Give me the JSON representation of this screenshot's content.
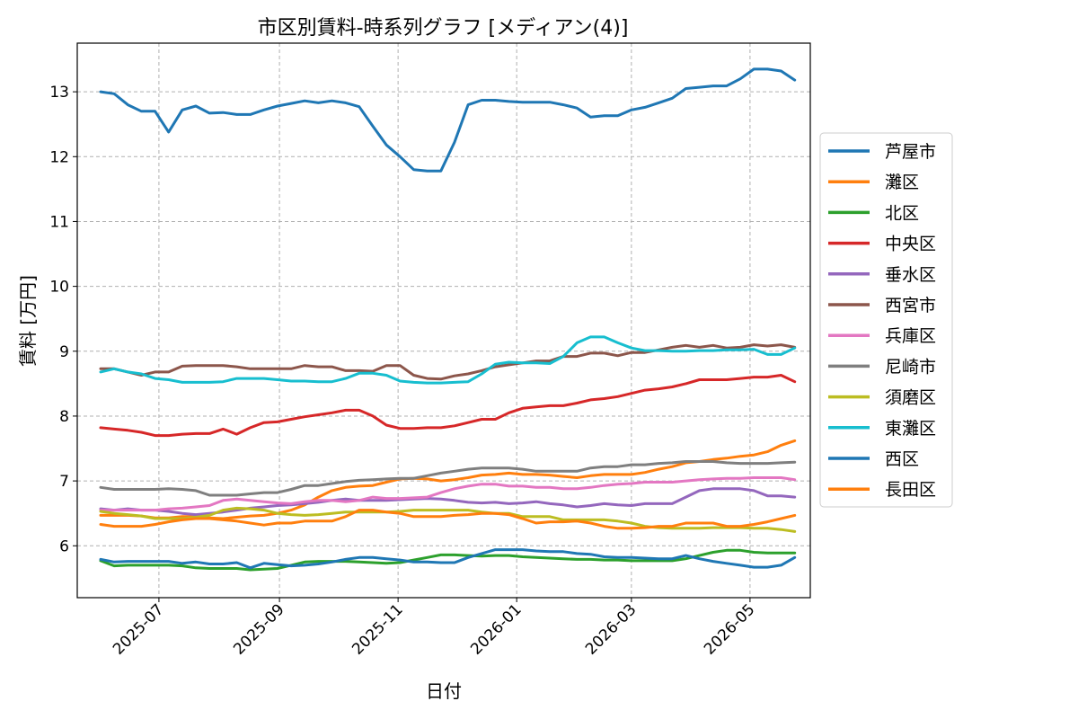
{
  "chart_data": {
    "type": "line",
    "title": "市区別賃料-時系列グラフ [メディアン(4)]",
    "xlabel": "日付",
    "ylabel": "賃料 [万円]",
    "xlim": [
      "2025-05-20",
      "2026-06-01"
    ],
    "ylim": [
      5.2,
      13.75
    ],
    "xticks": [
      "2025-07",
      "2025-09",
      "2025-11",
      "2026-01",
      "2026-03",
      "2026-05"
    ],
    "yticks": [
      6,
      7,
      8,
      9,
      10,
      11,
      12,
      13
    ],
    "grid": true,
    "legend_position": "right-outside",
    "x": [
      "2025-06-01",
      "2025-06-08",
      "2025-06-15",
      "2025-06-22",
      "2025-06-29",
      "2025-07-06",
      "2025-07-13",
      "2025-07-20",
      "2025-07-27",
      "2025-08-03",
      "2025-08-10",
      "2025-08-17",
      "2025-08-24",
      "2025-08-31",
      "2025-09-07",
      "2025-09-14",
      "2025-09-21",
      "2025-09-28",
      "2025-10-05",
      "2025-10-12",
      "2025-10-19",
      "2025-10-26",
      "2025-11-02",
      "2025-11-09",
      "2025-11-16",
      "2025-11-23",
      "2025-11-30",
      "2025-12-07",
      "2025-12-14",
      "2025-12-21",
      "2025-12-28",
      "2026-01-04",
      "2026-01-11",
      "2026-01-18",
      "2026-01-25",
      "2026-02-01",
      "2026-02-08",
      "2026-02-15",
      "2026-02-22",
      "2026-03-01",
      "2026-03-08",
      "2026-03-15",
      "2026-03-22",
      "2026-03-29",
      "2026-04-05",
      "2026-04-12",
      "2026-04-19",
      "2026-04-26",
      "2026-05-03",
      "2026-05-10",
      "2026-05-17",
      "2026-05-24"
    ],
    "series": [
      {
        "name": "芦屋市",
        "color": "#1f77b4",
        "values": [
          13.0,
          12.97,
          12.8,
          12.7,
          12.7,
          12.38,
          12.72,
          12.78,
          12.67,
          12.68,
          12.65,
          12.65,
          12.72,
          12.78,
          12.82,
          12.86,
          12.83,
          12.86,
          12.83,
          12.77,
          12.47,
          12.18,
          12.0,
          11.8,
          11.78,
          11.78,
          12.22,
          12.8,
          12.87,
          12.87,
          12.85,
          12.84,
          12.84,
          12.84,
          12.8,
          12.75,
          12.61,
          12.63,
          12.63,
          12.72,
          12.76,
          12.83,
          12.9,
          13.05,
          13.07,
          13.09,
          13.09,
          13.2,
          13.35,
          13.35,
          13.32,
          13.18
        ]
      },
      {
        "name": "灘区",
        "color": "#ff7f0e",
        "values": [
          6.47,
          6.47,
          6.47,
          6.46,
          6.43,
          6.43,
          6.45,
          6.45,
          6.43,
          6.42,
          6.44,
          6.46,
          6.47,
          6.5,
          6.55,
          6.63,
          6.75,
          6.85,
          6.9,
          6.92,
          6.93,
          6.98,
          7.03,
          7.04,
          7.03,
          7.0,
          7.02,
          7.05,
          7.09,
          7.1,
          7.12,
          7.1,
          7.1,
          7.09,
          7.07,
          7.05,
          7.08,
          7.1,
          7.1,
          7.1,
          7.13,
          7.18,
          7.22,
          7.28,
          7.3,
          7.33,
          7.35,
          7.38,
          7.4,
          7.45,
          7.55,
          7.62
        ]
      },
      {
        "name": "北区",
        "color": "#2ca02c",
        "values": [
          5.77,
          5.69,
          5.7,
          5.7,
          5.7,
          5.7,
          5.69,
          5.66,
          5.65,
          5.65,
          5.65,
          5.63,
          5.64,
          5.65,
          5.7,
          5.75,
          5.76,
          5.76,
          5.76,
          5.75,
          5.74,
          5.73,
          5.74,
          5.78,
          5.82,
          5.86,
          5.86,
          5.85,
          5.84,
          5.85,
          5.85,
          5.83,
          5.82,
          5.81,
          5.8,
          5.79,
          5.79,
          5.78,
          5.78,
          5.77,
          5.77,
          5.77,
          5.77,
          5.8,
          5.85,
          5.9,
          5.93,
          5.93,
          5.9,
          5.89,
          5.89,
          5.89
        ]
      },
      {
        "name": "中央区",
        "color": "#d62728",
        "values": [
          7.82,
          7.8,
          7.78,
          7.75,
          7.7,
          7.7,
          7.72,
          7.73,
          7.73,
          7.8,
          7.72,
          7.82,
          7.9,
          7.91,
          7.95,
          7.99,
          8.02,
          8.05,
          8.09,
          8.09,
          8.0,
          7.86,
          7.81,
          7.81,
          7.82,
          7.82,
          7.85,
          7.9,
          7.95,
          7.95,
          8.05,
          8.12,
          8.14,
          8.16,
          8.16,
          8.2,
          8.25,
          8.27,
          8.3,
          8.35,
          8.4,
          8.42,
          8.45,
          8.5,
          8.56,
          8.56,
          8.56,
          8.58,
          8.6,
          8.6,
          8.63,
          8.53
        ]
      },
      {
        "name": "垂水区",
        "color": "#9467bd",
        "values": [
          6.57,
          6.55,
          6.57,
          6.55,
          6.55,
          6.53,
          6.5,
          6.48,
          6.5,
          6.52,
          6.55,
          6.58,
          6.6,
          6.62,
          6.63,
          6.65,
          6.67,
          6.7,
          6.72,
          6.7,
          6.7,
          6.7,
          6.71,
          6.72,
          6.73,
          6.72,
          6.7,
          6.67,
          6.66,
          6.67,
          6.65,
          6.66,
          6.68,
          6.65,
          6.63,
          6.6,
          6.62,
          6.65,
          6.63,
          6.62,
          6.65,
          6.65,
          6.65,
          6.75,
          6.85,
          6.88,
          6.88,
          6.88,
          6.85,
          6.77,
          6.77,
          6.75
        ]
      },
      {
        "name": "西宮市",
        "color": "#8c564b",
        "values": [
          8.73,
          8.73,
          8.68,
          8.63,
          8.68,
          8.68,
          8.77,
          8.78,
          8.78,
          8.78,
          8.76,
          8.73,
          8.73,
          8.73,
          8.73,
          8.78,
          8.76,
          8.76,
          8.7,
          8.7,
          8.69,
          8.78,
          8.78,
          8.63,
          8.58,
          8.57,
          8.62,
          8.65,
          8.7,
          8.76,
          8.79,
          8.82,
          8.85,
          8.85,
          8.92,
          8.92,
          8.97,
          8.97,
          8.93,
          8.98,
          8.98,
          9.02,
          9.06,
          9.09,
          9.06,
          9.09,
          9.05,
          9.06,
          9.1,
          9.08,
          9.1,
          9.06
        ]
      },
      {
        "name": "兵庫区",
        "color": "#e377c2",
        "values": [
          6.55,
          6.55,
          6.55,
          6.55,
          6.55,
          6.57,
          6.58,
          6.6,
          6.62,
          6.7,
          6.72,
          6.7,
          6.68,
          6.66,
          6.65,
          6.68,
          6.7,
          6.7,
          6.68,
          6.7,
          6.75,
          6.73,
          6.73,
          6.74,
          6.75,
          6.82,
          6.88,
          6.92,
          6.95,
          6.95,
          6.92,
          6.92,
          6.9,
          6.9,
          6.88,
          6.88,
          6.9,
          6.93,
          6.95,
          6.96,
          6.98,
          6.98,
          6.98,
          7.0,
          7.02,
          7.03,
          7.04,
          7.04,
          7.05,
          7.05,
          7.05,
          7.02
        ]
      },
      {
        "name": "尼崎市",
        "color": "#7f7f7f",
        "values": [
          6.9,
          6.87,
          6.87,
          6.87,
          6.87,
          6.88,
          6.87,
          6.85,
          6.78,
          6.78,
          6.78,
          6.8,
          6.82,
          6.82,
          6.87,
          6.93,
          6.93,
          6.96,
          6.99,
          7.01,
          7.02,
          7.03,
          7.04,
          7.04,
          7.08,
          7.12,
          7.15,
          7.18,
          7.2,
          7.2,
          7.2,
          7.18,
          7.15,
          7.15,
          7.15,
          7.15,
          7.2,
          7.22,
          7.22,
          7.25,
          7.25,
          7.27,
          7.28,
          7.3,
          7.3,
          7.3,
          7.28,
          7.27,
          7.27,
          7.27,
          7.28,
          7.29
        ]
      },
      {
        "name": "須磨区",
        "color": "#bcbd22",
        "values": [
          6.53,
          6.5,
          6.48,
          6.46,
          6.42,
          6.42,
          6.42,
          6.44,
          6.47,
          6.55,
          6.58,
          6.57,
          6.55,
          6.5,
          6.48,
          6.47,
          6.48,
          6.5,
          6.52,
          6.52,
          6.52,
          6.52,
          6.53,
          6.55,
          6.55,
          6.55,
          6.55,
          6.55,
          6.52,
          6.5,
          6.5,
          6.45,
          6.45,
          6.45,
          6.4,
          6.4,
          6.4,
          6.4,
          6.38,
          6.35,
          6.3,
          6.28,
          6.27,
          6.27,
          6.27,
          6.28,
          6.28,
          6.28,
          6.27,
          6.27,
          6.25,
          6.22
        ]
      },
      {
        "name": "東灘区",
        "color": "#17becf",
        "values": [
          8.68,
          8.73,
          8.68,
          8.65,
          8.58,
          8.56,
          8.52,
          8.52,
          8.52,
          8.53,
          8.58,
          8.58,
          8.58,
          8.56,
          8.54,
          8.54,
          8.53,
          8.53,
          8.58,
          8.66,
          8.66,
          8.63,
          8.54,
          8.52,
          8.51,
          8.51,
          8.52,
          8.53,
          8.65,
          8.8,
          8.83,
          8.82,
          8.82,
          8.81,
          8.92,
          9.13,
          9.22,
          9.22,
          9.13,
          9.05,
          9.01,
          9.01,
          9.0,
          9.0,
          9.01,
          9.01,
          9.02,
          9.02,
          9.03,
          8.95,
          8.95,
          9.05
        ]
      },
      {
        "name": "西区",
        "color": "#1f77b4",
        "values": [
          5.79,
          5.75,
          5.76,
          5.76,
          5.76,
          5.76,
          5.73,
          5.75,
          5.72,
          5.72,
          5.74,
          5.66,
          5.73,
          5.71,
          5.69,
          5.7,
          5.72,
          5.75,
          5.79,
          5.82,
          5.82,
          5.8,
          5.78,
          5.75,
          5.75,
          5.74,
          5.74,
          5.82,
          5.88,
          5.94,
          5.94,
          5.94,
          5.92,
          5.91,
          5.91,
          5.88,
          5.87,
          5.83,
          5.82,
          5.82,
          5.81,
          5.8,
          5.8,
          5.85,
          5.8,
          5.76,
          5.73,
          5.7,
          5.67,
          5.67,
          5.7,
          5.82
        ]
      },
      {
        "name": "長田区",
        "color": "#ff7f0e",
        "values": [
          6.33,
          6.3,
          6.3,
          6.3,
          6.33,
          6.37,
          6.4,
          6.42,
          6.42,
          6.4,
          6.38,
          6.35,
          6.32,
          6.35,
          6.35,
          6.38,
          6.38,
          6.38,
          6.45,
          6.55,
          6.55,
          6.52,
          6.5,
          6.45,
          6.45,
          6.45,
          6.47,
          6.48,
          6.5,
          6.5,
          6.48,
          6.42,
          6.35,
          6.37,
          6.37,
          6.38,
          6.35,
          6.3,
          6.27,
          6.27,
          6.28,
          6.3,
          6.3,
          6.35,
          6.35,
          6.35,
          6.3,
          6.3,
          6.33,
          6.37,
          6.42,
          6.47
        ]
      }
    ]
  }
}
